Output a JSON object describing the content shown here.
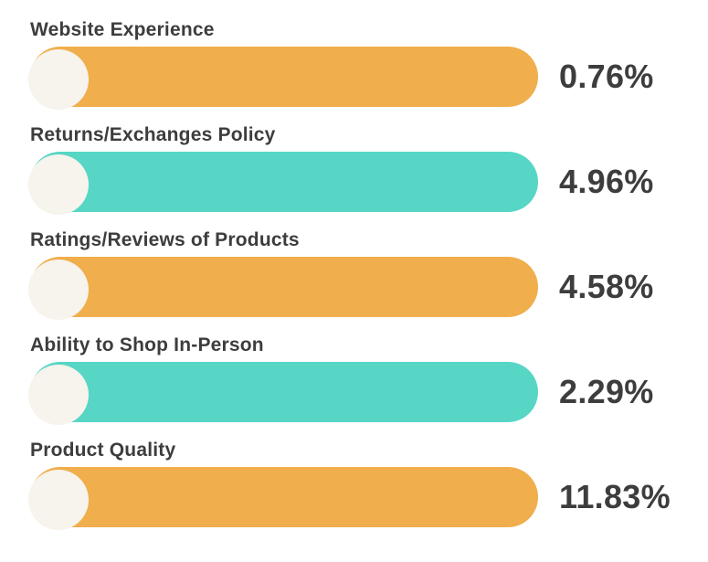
{
  "chart_data": {
    "type": "bar",
    "orientation": "horizontal",
    "title": "",
    "xlabel": "",
    "ylabel": "",
    "unit": "%",
    "grid": false,
    "legend": false,
    "bar_style": "equal-length decorative pills with circle end-cap; value shown as text at right",
    "categories": [
      "Website Experience",
      "Returns/Exchanges Policy",
      "Ratings/Reviews of Products",
      "Ability to Shop In-Person",
      "Product Quality"
    ],
    "values": [
      0.76,
      4.96,
      4.58,
      2.29,
      11.83
    ],
    "rows": [
      {
        "label": "Website Experience",
        "value_label": "0.76%",
        "bar_color": "#F0AE4C"
      },
      {
        "label": "Returns/Exchanges Policy",
        "value_label": "4.96%",
        "bar_color": "#57D6C5"
      },
      {
        "label": "Ratings/Reviews of Products",
        "value_label": "4.58%",
        "bar_color": "#F0AE4C"
      },
      {
        "label": "Ability to Shop In-Person",
        "value_label": "2.29%",
        "bar_color": "#57D6C5"
      },
      {
        "label": "Product Quality",
        "value_label": "11.83%",
        "bar_color": "#F0AE4C"
      }
    ],
    "colors": {
      "orange": "#F0AE4C",
      "teal": "#57D6C5",
      "circle_cap": "#F7F3ED",
      "text": "#3D3D3D",
      "background": "#FFFFFF"
    }
  }
}
